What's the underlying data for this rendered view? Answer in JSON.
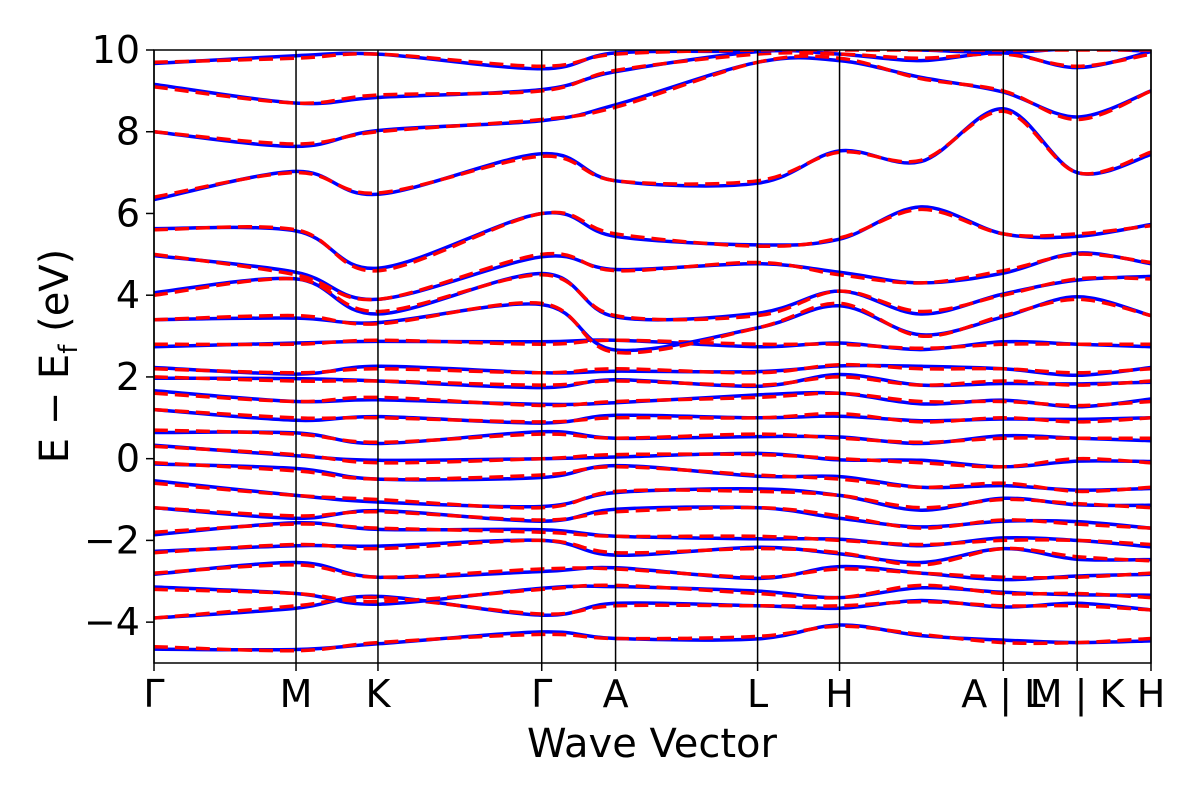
{
  "chart_data": {
    "type": "line",
    "title": "",
    "xlabel": "Wave Vector",
    "ylabel_parts": {
      "main": "E − E",
      "sub": "f",
      "unit": " (eV)"
    },
    "ylim": [
      -5,
      10
    ],
    "yticks": [
      -4,
      -2,
      0,
      2,
      4,
      6,
      8,
      10
    ],
    "ytick_labels": [
      "−4",
      "−2",
      "0",
      "2",
      "4",
      "6",
      "8",
      "10"
    ],
    "kpath_ticks": [
      {
        "label": "Γ",
        "x": 0.0
      },
      {
        "label": "M",
        "x": 1.0
      },
      {
        "label": "K",
        "x": 1.577
      },
      {
        "label": "Γ",
        "x": 2.73
      },
      {
        "label": "A",
        "x": 3.25
      },
      {
        "label": "L",
        "x": 4.25
      },
      {
        "label": "H",
        "x": 4.827
      },
      {
        "label": "A | L",
        "x": 5.98
      },
      {
        "label": "M | K",
        "x": 6.5
      },
      {
        "label": "H",
        "x": 7.02
      }
    ],
    "xlim": [
      0.0,
      7.02
    ],
    "grid": false,
    "line_colors": {
      "dft": "#0000ff",
      "model": "#ff0000"
    },
    "series": [
      {
        "values": [
          -4.6,
          -4.7,
          -4.5,
          -4.3,
          -4.4,
          -4.35,
          -4.1,
          -4.3,
          -4.5,
          -4.5,
          -4.4
        ]
      },
      {
        "values": [
          -3.9,
          -3.6,
          -3.4,
          -3.8,
          -3.6,
          -3.6,
          -3.6,
          -3.5,
          -3.6,
          -3.6,
          -3.7
        ]
      },
      {
        "values": [
          -3.2,
          -3.3,
          -3.5,
          -3.2,
          -3.1,
          -3.3,
          -3.4,
          -3.1,
          -3.3,
          -3.3,
          -3.4
        ]
      },
      {
        "values": [
          -2.8,
          -2.6,
          -2.9,
          -2.7,
          -2.7,
          -2.9,
          -2.7,
          -2.8,
          -2.9,
          -2.9,
          -2.8
        ]
      },
      {
        "values": [
          -2.3,
          -2.1,
          -2.2,
          -2.0,
          -2.3,
          -2.2,
          -2.3,
          -2.6,
          -2.2,
          -2.4,
          -2.5
        ]
      },
      {
        "values": [
          -1.8,
          -1.6,
          -1.7,
          -1.8,
          -1.9,
          -1.9,
          -2.0,
          -2.1,
          -2.0,
          -2.0,
          -2.1
        ]
      },
      {
        "values": [
          -1.2,
          -1.4,
          -1.3,
          -1.5,
          -1.3,
          -1.2,
          -1.4,
          -1.7,
          -1.5,
          -1.6,
          -1.7
        ]
      },
      {
        "values": [
          -0.6,
          -0.9,
          -1.0,
          -1.2,
          -0.8,
          -0.8,
          -0.9,
          -1.2,
          -1.0,
          -1.1,
          -1.2
        ]
      },
      {
        "values": [
          -0.1,
          -0.3,
          -0.5,
          -0.4,
          -0.2,
          -0.4,
          -0.5,
          -0.7,
          -0.6,
          -0.8,
          -0.7
        ]
      },
      {
        "values": [
          0.3,
          0.1,
          -0.1,
          0.0,
          0.1,
          0.1,
          0.0,
          -0.1,
          -0.2,
          0.0,
          -0.1
        ]
      },
      {
        "values": [
          0.7,
          0.6,
          0.4,
          0.6,
          0.5,
          0.6,
          0.5,
          0.4,
          0.5,
          0.5,
          0.5
        ]
      },
      {
        "values": [
          1.2,
          1.0,
          1.0,
          0.9,
          1.0,
          1.0,
          1.1,
          0.9,
          1.0,
          0.9,
          1.0
        ]
      },
      {
        "values": [
          1.6,
          1.4,
          1.5,
          1.3,
          1.4,
          1.5,
          1.6,
          1.4,
          1.4,
          1.3,
          1.4
        ]
      },
      {
        "values": [
          2.0,
          1.9,
          1.9,
          1.8,
          1.9,
          1.8,
          2.0,
          1.8,
          1.9,
          1.8,
          1.9
        ]
      },
      {
        "values": [
          2.2,
          2.1,
          2.2,
          2.1,
          2.2,
          2.1,
          2.3,
          2.2,
          2.2,
          2.1,
          2.2
        ]
      },
      {
        "values": [
          2.8,
          2.8,
          2.9,
          2.8,
          2.9,
          2.8,
          2.8,
          2.7,
          2.8,
          2.8,
          2.8
        ]
      },
      {
        "values": [
          3.4,
          3.5,
          3.3,
          3.8,
          2.6,
          3.2,
          3.8,
          3.0,
          3.5,
          3.9,
          3.5
        ]
      },
      {
        "values": [
          4.0,
          4.4,
          3.6,
          4.5,
          3.5,
          3.5,
          4.1,
          3.6,
          4.0,
          4.4,
          4.4
        ]
      },
      {
        "values": [
          5.0,
          4.5,
          3.9,
          5.0,
          4.6,
          4.8,
          4.5,
          4.3,
          4.6,
          5.0,
          4.8
        ]
      },
      {
        "values": [
          5.6,
          5.6,
          4.6,
          6.0,
          5.5,
          5.2,
          5.4,
          6.1,
          5.5,
          5.5,
          5.7
        ]
      },
      {
        "values": [
          6.4,
          7.0,
          6.5,
          7.4,
          6.8,
          6.8,
          7.5,
          7.3,
          8.5,
          7.0,
          7.5
        ]
      },
      {
        "values": [
          8.0,
          7.7,
          8.0,
          8.3,
          8.6,
          9.7,
          9.8,
          9.3,
          9.0,
          8.3,
          9.0
        ]
      },
      {
        "values": [
          9.1,
          8.7,
          8.9,
          9.0,
          9.5,
          9.9,
          9.9,
          9.8,
          9.9,
          9.6,
          9.9
        ]
      },
      {
        "values": [
          9.7,
          9.8,
          9.9,
          9.6,
          9.9,
          10.0,
          10.0,
          10.0,
          10.0,
          10.0,
          10.0
        ]
      }
    ],
    "series_x": [
      0.0,
      1.0,
      1.577,
      2.73,
      3.25,
      4.25,
      4.827,
      5.4,
      5.98,
      6.5,
      7.02
    ]
  }
}
